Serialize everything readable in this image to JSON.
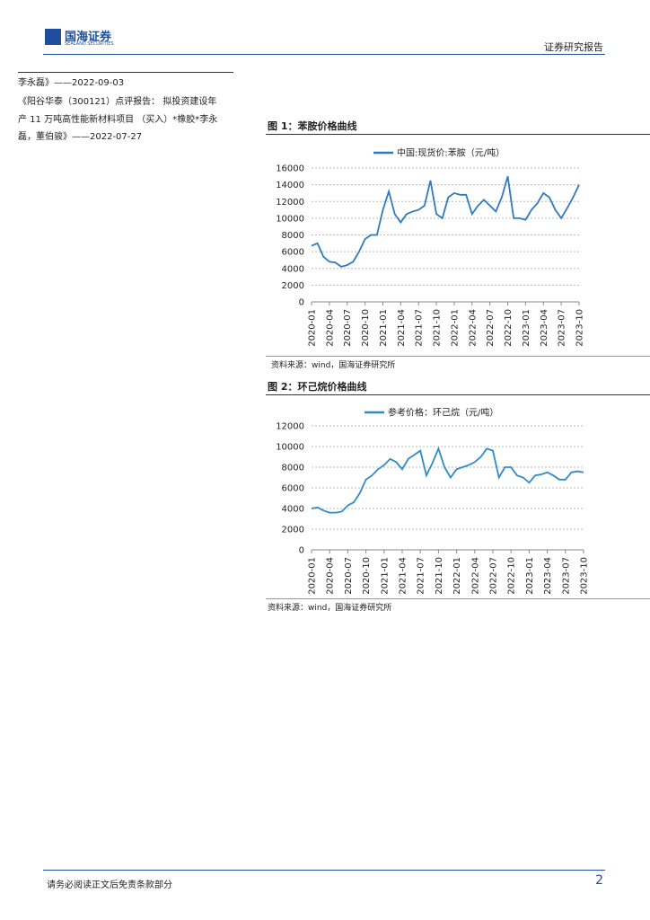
{
  "header": {
    "company": "国海证券",
    "company_en": "SEALAND SECURITIES",
    "report_type": "证券研究报告"
  },
  "sidebar": {
    "lines": [
      "李永磊》——2022-09-03",
      "《阳谷华泰（300121）点评报告：  拟投资建设年",
      "产 11 万吨高性能新材料项目  （买入）*橡胶*李永",
      "磊，董伯骏》——2022-07-27"
    ]
  },
  "figures": [
    {
      "label": "图 1：",
      "title": "苯胺价格曲线",
      "source": "资料来源：wind，国海证券研究所"
    },
    {
      "label": "图 2：",
      "title": "环己烷价格曲线",
      "source": "资料来源：wind，国海证券研究所"
    }
  ],
  "chart_data": [
    {
      "type": "line",
      "categories": [
        "2020-01",
        null,
        null,
        "2020-04",
        null,
        null,
        "2020-07",
        null,
        null,
        "2020-10",
        null,
        null,
        "2021-01",
        null,
        null,
        "2021-04",
        null,
        null,
        "2021-07",
        null,
        null,
        "2021-10",
        null,
        null,
        "2022-01",
        null,
        null,
        "2022-04",
        null,
        null,
        "2022-07",
        null,
        null,
        "2022-10",
        null,
        null,
        "2023-01",
        null,
        null,
        "2023-04",
        null,
        null,
        "2023-07",
        null,
        null,
        "2023-10"
      ],
      "series": [
        {
          "name": "中国:现货价:苯胺（元/吨）",
          "color": "#2e7bbf",
          "values": [
            6700,
            7000,
            5400,
            4800,
            4700,
            4200,
            4400,
            4800,
            6000,
            7500,
            8000,
            8000,
            11000,
            13200,
            10500,
            9500,
            10500,
            10800,
            11000,
            11500,
            14500,
            10500,
            10000,
            12500,
            13000,
            12800,
            12800,
            10500,
            11500,
            12200,
            11500,
            10800,
            12500,
            15000,
            10000,
            10000,
            9800,
            11000,
            11800,
            13000,
            12500,
            11000,
            10000,
            11200,
            12500,
            14000
          ]
        }
      ],
      "ylim": [
        0,
        16000
      ],
      "yticks": [
        0,
        2000,
        4000,
        6000,
        8000,
        10000,
        12000,
        14000,
        16000
      ],
      "grid": true
    },
    {
      "type": "line",
      "categories": [
        "2020-01",
        null,
        null,
        "2020-04",
        null,
        null,
        "2020-07",
        null,
        null,
        "2020-10",
        null,
        null,
        "2021-01",
        null,
        null,
        "2021-04",
        null,
        null,
        "2021-07",
        null,
        null,
        "2021-10",
        null,
        null,
        "2022-01",
        null,
        null,
        "2022-04",
        null,
        null,
        "2022-07",
        null,
        null,
        "2022-10",
        null,
        null,
        "2023-01",
        null,
        null,
        "2023-04",
        null,
        null,
        "2023-07",
        null,
        null,
        "2023-10"
      ],
      "series": [
        {
          "name": "参考价格：环己烷（元/吨）",
          "color": "#2e8bc9",
          "values": [
            4000,
            4100,
            3800,
            3600,
            3600,
            3700,
            4300,
            4600,
            5500,
            6800,
            7200,
            7800,
            8200,
            8800,
            8500,
            7800,
            8800,
            9200,
            9600,
            7200,
            8400,
            9800,
            8000,
            7000,
            7800,
            8000,
            8200,
            8500,
            9000,
            9800,
            9600,
            7000,
            8000,
            8000,
            7200,
            7000,
            6500,
            7200,
            7300,
            7500,
            7200,
            6800,
            6800,
            7500,
            7600,
            7500
          ]
        }
      ],
      "ylim": [
        0,
        12000
      ],
      "yticks": [
        0,
        2000,
        4000,
        6000,
        8000,
        10000,
        12000
      ],
      "grid": true
    }
  ],
  "footer": {
    "disclaimer": "请务必阅读正文后免责条款部分",
    "page": "2"
  }
}
